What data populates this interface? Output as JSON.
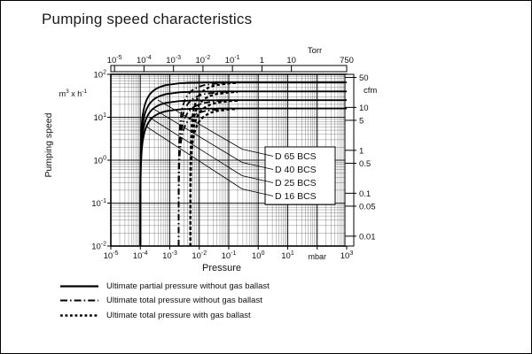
{
  "title": "Pumping speed characteristics",
  "chart_data": {
    "type": "line",
    "title": "Pumping speed characteristics",
    "x_scale": "log",
    "y_scale": "log",
    "grid": "log-log major and minor gridlines, black on white",
    "xlim_mbar": [
      1e-05,
      1000
    ],
    "ylim_m3h": [
      0.01,
      100
    ],
    "x_axis_bottom": {
      "label": "Pressure",
      "unit": "mbar",
      "ticks": [
        {
          "v": 1e-05,
          "base": "10",
          "exp": "-5"
        },
        {
          "v": 0.0001,
          "base": "10",
          "exp": "-4"
        },
        {
          "v": 0.001,
          "base": "10",
          "exp": "-3"
        },
        {
          "v": 0.01,
          "base": "10",
          "exp": "-2"
        },
        {
          "v": 0.1,
          "base": "10",
          "exp": "-1"
        },
        {
          "v": 1,
          "base": "10",
          "exp": "0"
        },
        {
          "v": 10,
          "base": "10",
          "exp": "1"
        },
        {
          "v": 100,
          "label": "mbar",
          "is_unit": true
        },
        {
          "v": 1000,
          "base": "10",
          "exp": "3"
        }
      ]
    },
    "x_axis_top": {
      "unit": "Torr",
      "mbar_per_torr": 1.33333,
      "ticks": [
        {
          "v": 1e-05,
          "base": "10",
          "exp": "-5"
        },
        {
          "v": 0.0001,
          "base": "10",
          "exp": "-4"
        },
        {
          "v": 0.001,
          "base": "10",
          "exp": "-3"
        },
        {
          "v": 0.01,
          "base": "10",
          "exp": "-2"
        },
        {
          "v": 0.1,
          "base": "10",
          "exp": "-1"
        },
        {
          "v": 1,
          "label": "1"
        },
        {
          "v": 10,
          "label": "10"
        },
        {
          "v": 750,
          "label": "750"
        }
      ]
    },
    "y_axis_left": {
      "label": "Pumping speed",
      "unit_parts": [
        {
          "t": "m"
        },
        {
          "t": "3",
          "sup": true
        },
        {
          "t": " x h"
        },
        {
          "t": "-1",
          "sup": true
        }
      ],
      "ticks": [
        {
          "v": 100,
          "base": "10",
          "exp": "2"
        },
        {
          "v": 10,
          "base": "10",
          "exp": "1"
        },
        {
          "v": 1,
          "base": "10",
          "exp": "0"
        },
        {
          "v": 0.1,
          "base": "10",
          "exp": "-1"
        },
        {
          "v": 0.01,
          "base": "10",
          "exp": "-2"
        }
      ]
    },
    "y_axis_right": {
      "unit": "cfm",
      "cfm_per_m3h": 0.589,
      "ticks": [
        {
          "v": 50,
          "label": "50"
        },
        {
          "v": 10,
          "label": "10"
        },
        {
          "v": 5,
          "label": "5"
        },
        {
          "v": 1,
          "label": "1"
        },
        {
          "v": 0.5,
          "label": "0.5"
        },
        {
          "v": 0.1,
          "label": "0.1"
        },
        {
          "v": 0.05,
          "label": "0.05"
        },
        {
          "v": 0.01,
          "label": "0.01"
        }
      ]
    },
    "series": [
      {
        "name": "D 65 BCS",
        "max_pumping_speed_m3h": 65
      },
      {
        "name": "D 40 BCS",
        "max_pumping_speed_m3h": 40
      },
      {
        "name": "D 25 BCS",
        "max_pumping_speed_m3h": 25
      },
      {
        "name": "D 16 BCS",
        "max_pumping_speed_m3h": 16
      }
    ],
    "ultimate_pressures_mbar": {
      "partial_without_gas_ballast": 0.0001,
      "total_without_gas_ballast": 0.002,
      "total_with_gas_ballast": 0.005
    },
    "legend": [
      {
        "style": "solid",
        "label": "Ultimate partial pressure without gas ballast"
      },
      {
        "style": "dashdot",
        "label": "Ultimate total pressure without gas ballast"
      },
      {
        "style": "dashed",
        "label": "Ultimate total pressure with gas ballast"
      }
    ]
  }
}
